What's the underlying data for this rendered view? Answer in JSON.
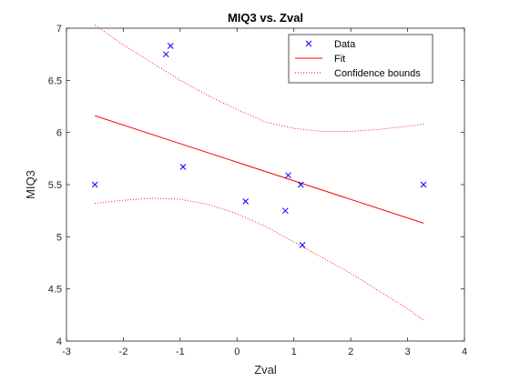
{
  "chart_data": {
    "type": "scatter",
    "title": "MIQ3 vs. Zval",
    "xlabel": "Zval",
    "ylabel": "MIQ3",
    "xlim": [
      -3,
      4
    ],
    "ylim": [
      4,
      7
    ],
    "xticks": [
      "-3",
      "-2",
      "-1",
      "0",
      "1",
      "2",
      "3",
      "4"
    ],
    "yticks": [
      "4",
      "4.5",
      "5",
      "5.5",
      "6",
      "6.5",
      "7"
    ],
    "grid": false,
    "legend_position": "top-right",
    "series": [
      {
        "name": "Data",
        "kind": "markers",
        "marker": "x",
        "color": "#0000ff",
        "points": [
          [
            -2.5,
            5.5
          ],
          [
            -1.25,
            6.75
          ],
          [
            -1.17,
            6.83
          ],
          [
            -0.95,
            5.67
          ],
          [
            0.15,
            5.34
          ],
          [
            0.85,
            5.25
          ],
          [
            0.9,
            5.59
          ],
          [
            1.12,
            5.5
          ],
          [
            1.15,
            4.92
          ],
          [
            3.28,
            5.5
          ]
        ]
      },
      {
        "name": "Fit",
        "kind": "line",
        "style": "solid",
        "color": "#ff0000",
        "points": [
          [
            -2.5,
            6.16
          ],
          [
            3.28,
            5.13
          ]
        ]
      },
      {
        "name": "Confidence bounds",
        "kind": "line",
        "style": "dotted",
        "color": "#ff0000",
        "upper": [
          [
            -2.5,
            7.03
          ],
          [
            -2.0,
            6.84
          ],
          [
            -1.5,
            6.67
          ],
          [
            -1.0,
            6.5
          ],
          [
            -0.5,
            6.35
          ],
          [
            0.0,
            6.22
          ],
          [
            0.5,
            6.1
          ],
          [
            1.0,
            6.04
          ],
          [
            1.5,
            6.01
          ],
          [
            2.0,
            6.01
          ],
          [
            2.5,
            6.03
          ],
          [
            3.0,
            6.06
          ],
          [
            3.28,
            6.08
          ]
        ],
        "lower": [
          [
            -2.5,
            5.32
          ],
          [
            -2.0,
            5.35
          ],
          [
            -1.5,
            5.37
          ],
          [
            -1.0,
            5.36
          ],
          [
            -0.5,
            5.31
          ],
          [
            0.0,
            5.22
          ],
          [
            0.5,
            5.1
          ],
          [
            1.0,
            4.95
          ],
          [
            1.5,
            4.8
          ],
          [
            2.0,
            4.65
          ],
          [
            2.5,
            4.48
          ],
          [
            3.0,
            4.31
          ],
          [
            3.28,
            4.2
          ]
        ]
      }
    ]
  }
}
